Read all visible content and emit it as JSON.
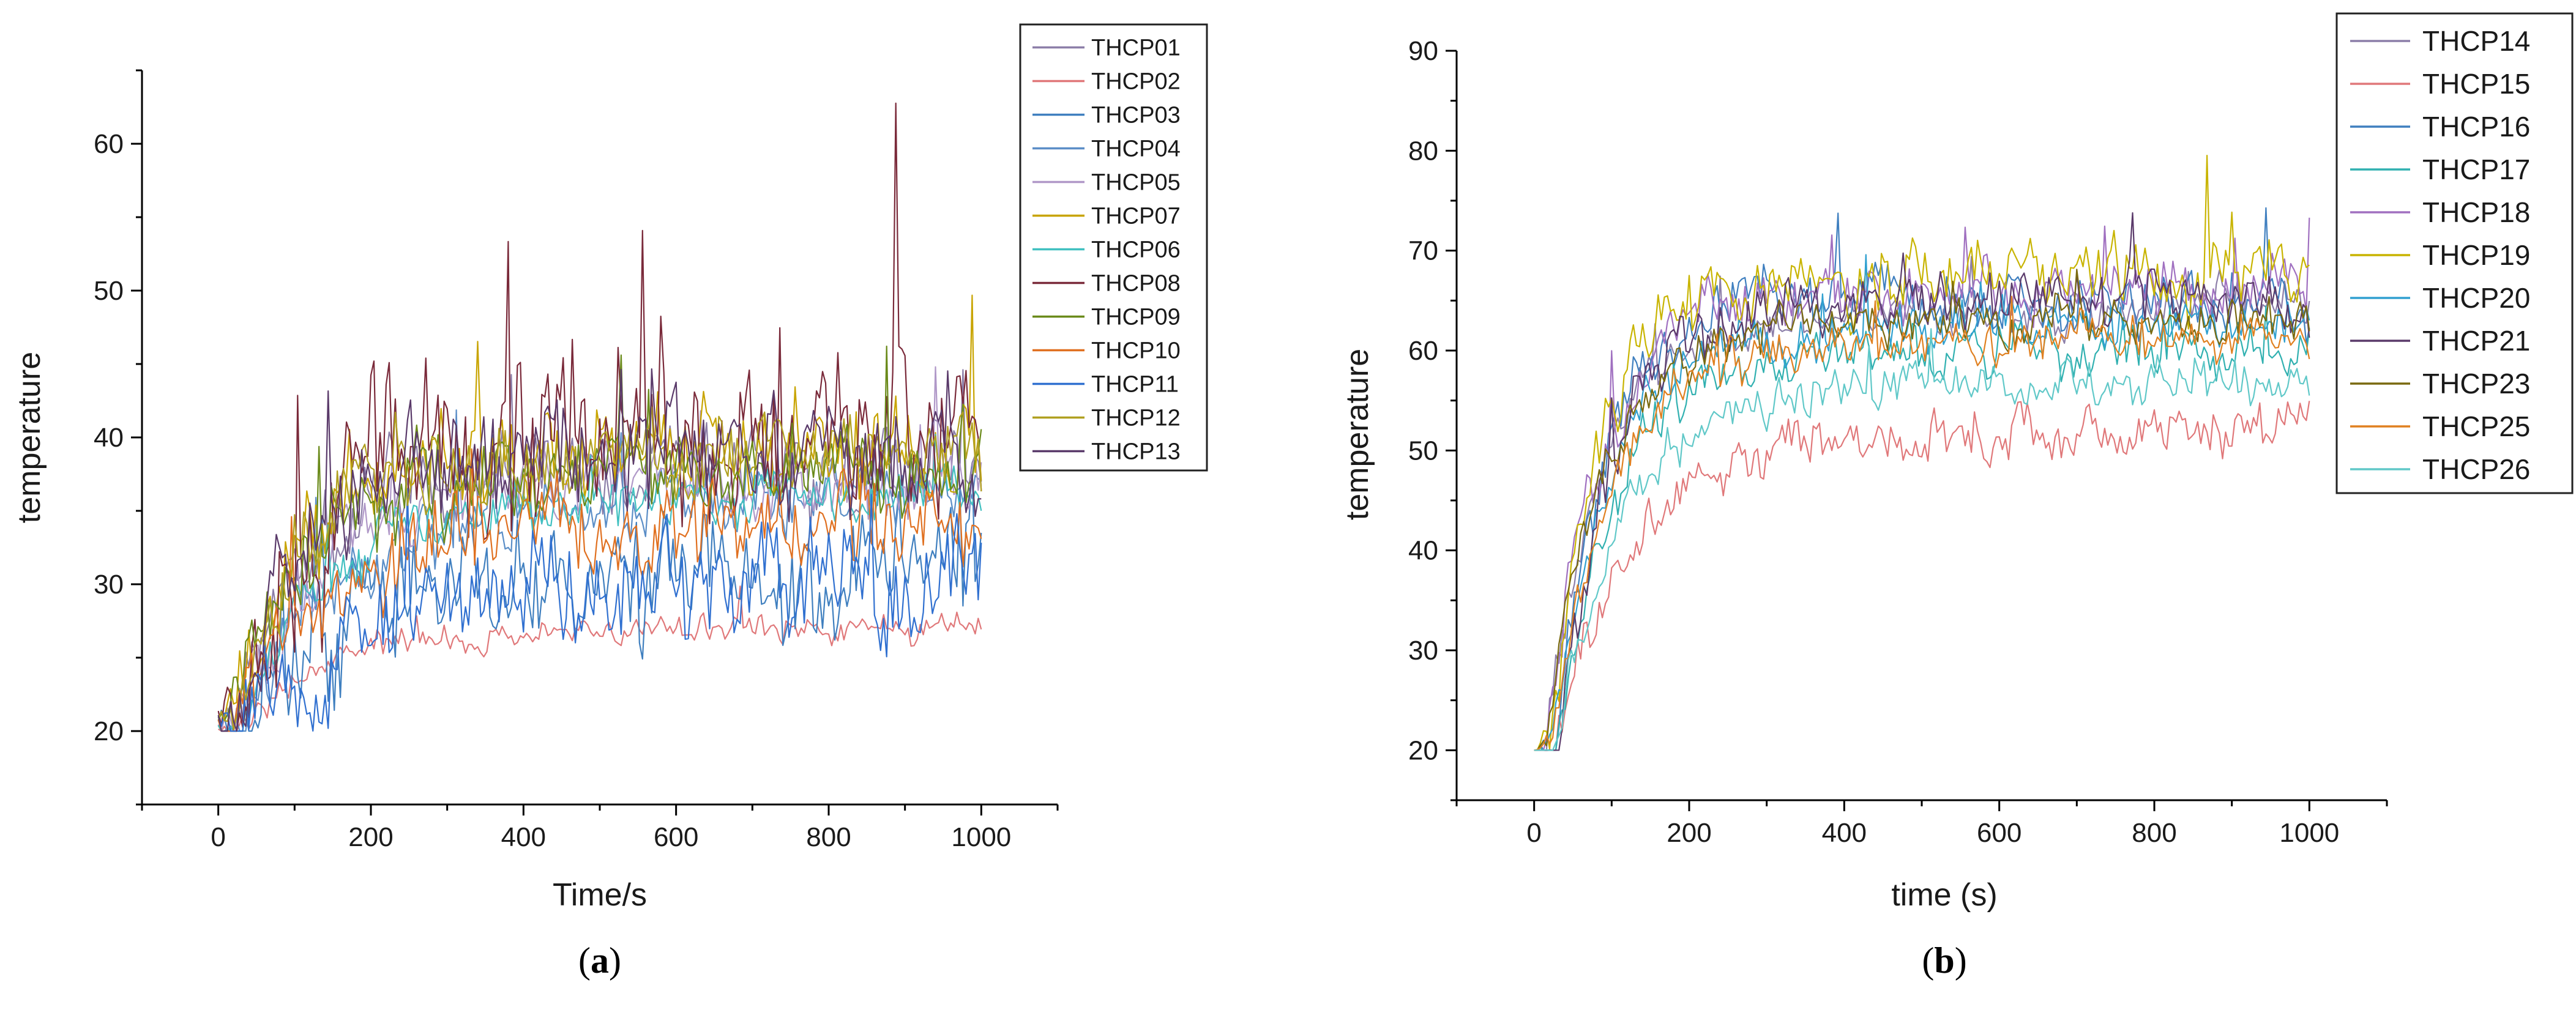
{
  "chart_data": [
    {
      "type": "line",
      "panel_label": "a",
      "xlabel": "Time/s",
      "ylabel": "temperature",
      "xlim": [
        -100,
        1100
      ],
      "ylim": [
        15,
        65
      ],
      "xticks": [
        0,
        200,
        400,
        600,
        800,
        1000
      ],
      "yticks": [
        20,
        30,
        40,
        50,
        60
      ],
      "legend_position": "top-right",
      "series": [
        {
          "name": "THCP01",
          "color": "#8c7ea8",
          "plateau": 38,
          "tau": 100,
          "noise": 2.5
        },
        {
          "name": "THCP02",
          "color": "#e0787a",
          "plateau": 27,
          "tau": 110,
          "noise": 0.8
        },
        {
          "name": "THCP03",
          "color": "#3f7fbf",
          "plateau": 31,
          "tau": 160,
          "noise": 3.5
        },
        {
          "name": "THCP04",
          "color": "#5b8ec7",
          "plateau": 36,
          "tau": 130,
          "noise": 2
        },
        {
          "name": "THCP05",
          "color": "#b098c8",
          "plateau": 37,
          "tau": 110,
          "noise": 2
        },
        {
          "name": "THCP07",
          "color": "#c8a400",
          "plateau": 39,
          "tau": 80,
          "noise": 3
        },
        {
          "name": "THCP06",
          "color": "#40c0c0",
          "plateau": 36,
          "tau": 120,
          "noise": 1.5
        },
        {
          "name": "THCP08",
          "color": "#7a2a3a",
          "plateau": 41,
          "tau": 90,
          "noise": 5
        },
        {
          "name": "THCP09",
          "color": "#6a8a1a",
          "plateau": 38,
          "tau": 95,
          "noise": 2.5
        },
        {
          "name": "THCP10",
          "color": "#e07020",
          "plateau": 34,
          "tau": 140,
          "noise": 2.5
        },
        {
          "name": "THCP11",
          "color": "#3070d0",
          "plateau": 30,
          "tau": 170,
          "noise": 3
        },
        {
          "name": "THCP12",
          "color": "#b0a020",
          "plateau": 39,
          "tau": 85,
          "noise": 2.5
        },
        {
          "name": "THCP13",
          "color": "#5a3a6a",
          "plateau": 39,
          "tau": 95,
          "noise": 3
        }
      ]
    },
    {
      "type": "line",
      "panel_label": "b",
      "xlabel": "time (s)",
      "ylabel": "temperature",
      "xlim": [
        -100,
        1100
      ],
      "ylim": [
        15,
        90
      ],
      "xticks": [
        0,
        200,
        400,
        600,
        800,
        1000
      ],
      "yticks": [
        20,
        30,
        40,
        50,
        60,
        70,
        80,
        90
      ],
      "legend_position": "top-right",
      "series": [
        {
          "name": "THCP14",
          "color": "#8c7ea8",
          "plateau": 64,
          "tau": 70,
          "noise": 2
        },
        {
          "name": "THCP15",
          "color": "#e0787a",
          "plateau": 52,
          "tau": 110,
          "noise": 2
        },
        {
          "name": "THCP16",
          "color": "#3f7fbf",
          "plateau": 65,
          "tau": 65,
          "noise": 2.5
        },
        {
          "name": "THCP17",
          "color": "#30b0b0",
          "plateau": 60,
          "tau": 75,
          "noise": 2
        },
        {
          "name": "THCP18",
          "color": "#a070c0",
          "plateau": 66,
          "tau": 70,
          "noise": 2.5
        },
        {
          "name": "THCP19",
          "color": "#c8b400",
          "plateau": 67,
          "tau": 60,
          "noise": 3
        },
        {
          "name": "THCP20",
          "color": "#30a0d0",
          "plateau": 62,
          "tau": 70,
          "noise": 2
        },
        {
          "name": "THCP21",
          "color": "#5a3a6a",
          "plateau": 65,
          "tau": 65,
          "noise": 2.5
        },
        {
          "name": "THCP23",
          "color": "#7a6a10",
          "plateau": 63,
          "tau": 70,
          "noise": 2
        },
        {
          "name": "THCP25",
          "color": "#e08020",
          "plateau": 61,
          "tau": 80,
          "noise": 2
        },
        {
          "name": "THCP26",
          "color": "#60c8c8",
          "plateau": 57,
          "tau": 90,
          "noise": 2
        }
      ]
    }
  ]
}
